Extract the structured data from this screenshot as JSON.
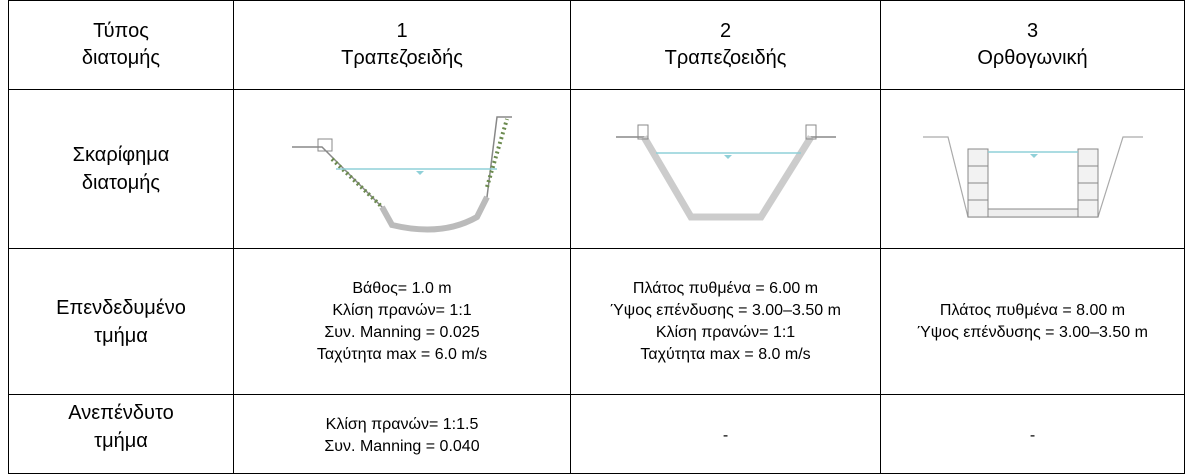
{
  "table": {
    "header": [
      [
        "Τύπος",
        "διατομής"
      ],
      [
        "1",
        "Τραπεζοειδής"
      ],
      [
        "2",
        "Τραπεζοειδής"
      ],
      [
        "3",
        "Ορθογωνική"
      ]
    ],
    "rows": [
      {
        "label": [
          "Σκαρίφημα",
          "διατομής"
        ]
      },
      {
        "label": [
          "Επενδεδυμένο",
          "τμήμα"
        ],
        "cells": [
          [
            "Βάθος= 1.0 m",
            "Κλίση πρανών= 1:1",
            "Συν. Manning = 0.025",
            "Ταχύτητα max = 6.0 m/s"
          ],
          [
            "Πλάτος πυθμένα = 6.00 m",
            "Ύψος επένδυσης = 3.00–3.50 m",
            "Κλίση πρανών= 1:1",
            "Ταχύτητα max = 8.0 m/s"
          ],
          [
            "Πλάτος πυθμένα = 8.00 m",
            "Ύψος επένδυσης = 3.00–3.50 m"
          ]
        ]
      },
      {
        "label": [
          "Ανεπένδυτο",
          "τμήμα"
        ],
        "cells": [
          [
            "Κλίση πρανών= 1:1.5",
            "Συν. Manning = 0.040"
          ],
          [
            "-"
          ],
          [
            "-"
          ]
        ]
      }
    ]
  }
}
